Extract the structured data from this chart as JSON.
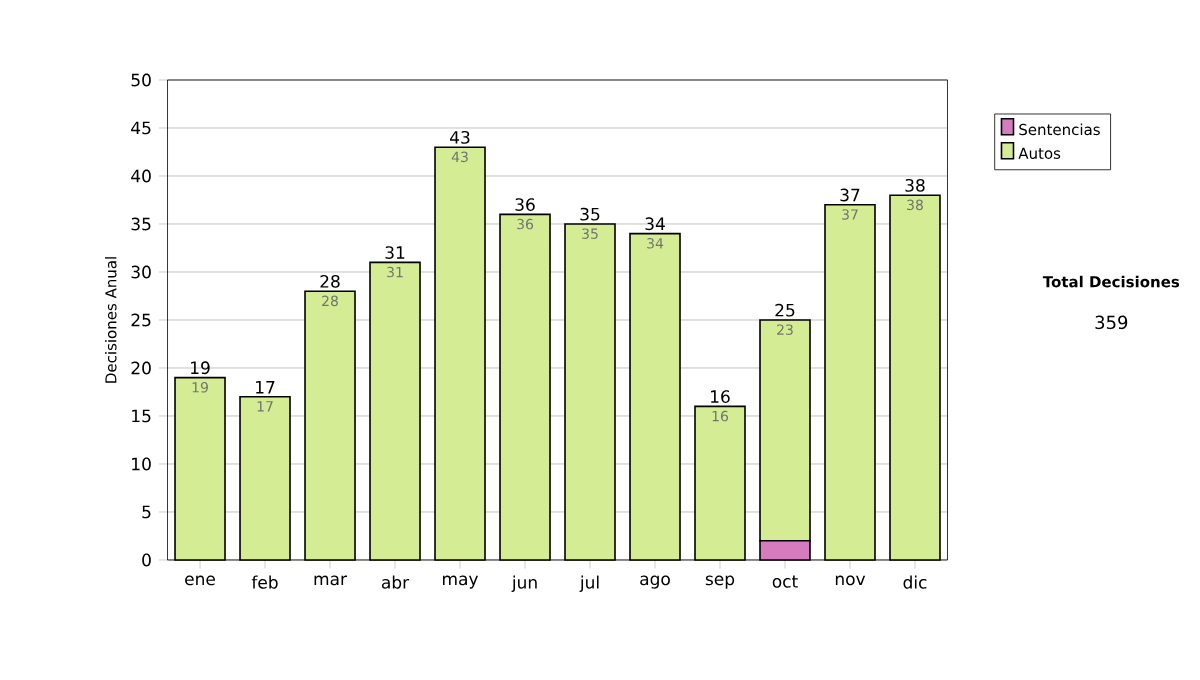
{
  "chart_data": {
    "type": "bar",
    "stacked": true,
    "ylabel": "Decisiones Anual",
    "categories": [
      "ene",
      "feb",
      "mar",
      "abr",
      "may",
      "jun",
      "jul",
      "ago",
      "sep",
      "oct",
      "nov",
      "dic"
    ],
    "series": [
      {
        "name": "Sentencias",
        "color": "#d67cbe",
        "values": [
          0,
          0,
          0,
          0,
          0,
          0,
          0,
          0,
          0,
          2,
          0,
          0
        ]
      },
      {
        "name": "Autos",
        "color": "#d4ec94",
        "values": [
          19,
          17,
          28,
          31,
          43,
          36,
          35,
          34,
          16,
          23,
          37,
          38
        ],
        "value_labels": [
          "19",
          "17",
          "28",
          "31",
          "43",
          "36",
          "35",
          "34",
          "16",
          "23",
          "37",
          "38"
        ]
      }
    ],
    "totals": [
      "19",
      "17",
      "28",
      "31",
      "43",
      "36",
      "35",
      "34",
      "16",
      "25",
      "37",
      "38"
    ],
    "ylim": [
      0,
      50
    ],
    "yticks": [
      0,
      5,
      10,
      15,
      20,
      25,
      30,
      35,
      40,
      45,
      50
    ],
    "grid": "y",
    "legend": "right",
    "annotations": [
      "Total Decisiones",
      "359"
    ]
  }
}
